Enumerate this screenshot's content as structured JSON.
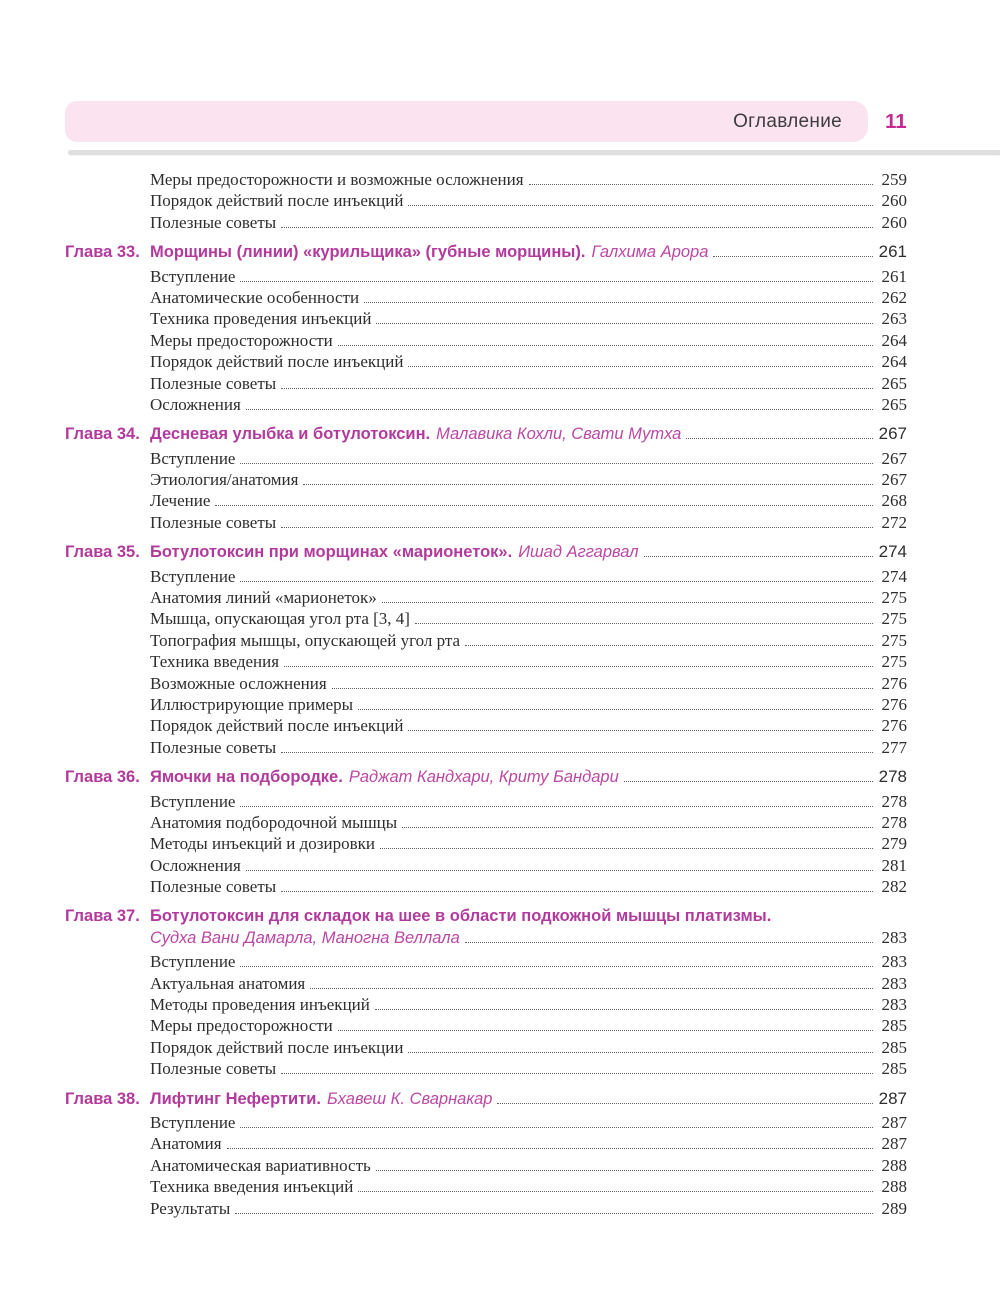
{
  "colors": {
    "accent_magenta": "#b23a9c",
    "authors_magenta": "#bb47a4",
    "page_number_pink": "#c42a92",
    "header_bar_pink": "#fbe3f0",
    "separator_gray": "#dfdfdf",
    "body_text": "#2e2e2e"
  },
  "header": {
    "title": "Оглавление",
    "page_number": "11"
  },
  "toc": {
    "leading_entries": [
      {
        "label": "Меры предосторожности и возможные осложнения",
        "page": "259"
      },
      {
        "label": "Порядок действий после инъекций",
        "page": "260"
      },
      {
        "label": "Полезные советы",
        "page": "260"
      }
    ],
    "chapters": [
      {
        "label": "Глава 33.",
        "title": "Морщины (линии) «курильщика» (губные морщины).",
        "authors": "Галхима Арора",
        "page": "261",
        "entries": [
          {
            "label": "Вступление",
            "page": "261"
          },
          {
            "label": "Анатомические особенности",
            "page": "262"
          },
          {
            "label": "Техника проведения инъекций",
            "page": "263"
          },
          {
            "label": "Меры предосторожности",
            "page": "264"
          },
          {
            "label": "Порядок действий после инъекций",
            "page": "264"
          },
          {
            "label": "Полезные советы",
            "page": "265"
          },
          {
            "label": "Осложнения",
            "page": "265"
          }
        ]
      },
      {
        "label": "Глава 34.",
        "title": "Десневая улыбка и ботулотоксин.",
        "authors": "Малавика Кохли, Свати Мутха",
        "page": "267",
        "entries": [
          {
            "label": "Вступление",
            "page": "267"
          },
          {
            "label": "Этиология/анатомия",
            "page": "267"
          },
          {
            "label": "Лечение",
            "page": "268"
          },
          {
            "label": "Полезные советы",
            "page": "272"
          }
        ]
      },
      {
        "label": "Глава 35.",
        "title": "Ботулотоксин при морщинах «марионеток».",
        "authors": "Ишад Аггарвал",
        "page": "274",
        "entries": [
          {
            "label": "Вступление",
            "page": "274"
          },
          {
            "label": "Анатомия линий «марионеток»",
            "page": "275"
          },
          {
            "label": "Мышца, опускающая угол рта [3, 4]",
            "page": "275"
          },
          {
            "label": "Топография мышцы, опускающей угол рта",
            "page": "275"
          },
          {
            "label": "Техника введения",
            "page": "275"
          },
          {
            "label": "Возможные осложнения",
            "page": "276"
          },
          {
            "label": "Иллюстрирующие примеры",
            "page": "276"
          },
          {
            "label": "Порядок действий после инъекций",
            "page": "276"
          },
          {
            "label": "Полезные советы",
            "page": "277"
          }
        ]
      },
      {
        "label": "Глава 36.",
        "title": "Ямочки на подбородке.",
        "authors": "Раджат Кандхари, Криту Бандари",
        "page": "278",
        "entries": [
          {
            "label": "Вступление",
            "page": "278"
          },
          {
            "label": "Анатомия подбородочной мышцы",
            "page": "278"
          },
          {
            "label": "Методы инъекций и дозировки",
            "page": "279"
          },
          {
            "label": "Осложнения",
            "page": "281"
          },
          {
            "label": "Полезные советы",
            "page": "282"
          }
        ]
      },
      {
        "label": "Глава 37.",
        "title": "Ботулотоксин для складок на шее в области подкожной мышцы платизмы.",
        "authors": "",
        "page": "",
        "authors_line": {
          "text": "Судха Вани Дамарла, Маногна Веллала",
          "page": "283"
        },
        "entries": [
          {
            "label": "Вступление",
            "page": "283"
          },
          {
            "label": "Актуальная анатомия",
            "page": "283"
          },
          {
            "label": "Методы проведения инъекций",
            "page": "283"
          },
          {
            "label": "Меры предосторожности",
            "page": "285"
          },
          {
            "label": "Порядок действий после инъекции",
            "page": "285"
          },
          {
            "label": "Полезные советы",
            "page": "285"
          }
        ]
      },
      {
        "label": "Глава 38.",
        "title": "Лифтинг Нефертити.",
        "authors": "Бхавеш К. Сварнакар",
        "page": "287",
        "entries": [
          {
            "label": "Вступление",
            "page": "287"
          },
          {
            "label": "Анатомия",
            "page": "287"
          },
          {
            "label": "Анатомическая вариативность",
            "page": "288"
          },
          {
            "label": "Техника введения инъекций",
            "page": "288"
          },
          {
            "label": "Результаты",
            "page": "289"
          }
        ]
      }
    ]
  }
}
